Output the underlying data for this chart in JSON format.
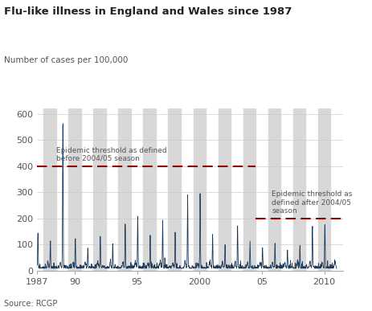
{
  "title": "Flu-like illness in England and Wales since 1987",
  "ylabel": "Number of cases per 100,000",
  "source": "Source: RCGP",
  "threshold_old": 400,
  "threshold_new": 200,
  "threshold_old_label": "Epidemic threshold as defined\nbefore 2004/05 season",
  "threshold_new_label": "Epidemic threshold as\ndefined after 2004/05\nseason",
  "xlim_start": 1987.0,
  "xlim_end": 2011.5,
  "ylim": [
    0,
    620
  ],
  "xticks": [
    1987,
    1990,
    1995,
    2000,
    2005,
    2010
  ],
  "xticklabels": [
    "1987",
    "90",
    "95",
    "2000",
    "05",
    "2010"
  ],
  "yticks": [
    0,
    100,
    200,
    300,
    400,
    500,
    600
  ],
  "line_color": "#1a3a5c",
  "threshold_color": "#990000",
  "bg_color": "#ffffff",
  "stripe_color": "#d8d8d8",
  "title_color": "#222222",
  "label_color": "#555555",
  "peak_heights": {
    "1987": 140,
    "1988": 100,
    "1989": 600,
    "1990": 120,
    "1991": 80,
    "1992": 130,
    "1993": 90,
    "1994": 160,
    "1995": 200,
    "1996": 130,
    "1997": 170,
    "1998": 130,
    "1999": 280,
    "2000": 270,
    "2001": 130,
    "2002": 90,
    "2003": 160,
    "2004": 100,
    "2005": 80,
    "2006": 90,
    "2007": 70,
    "2008": 90,
    "2009": 160,
    "2010": 170
  }
}
